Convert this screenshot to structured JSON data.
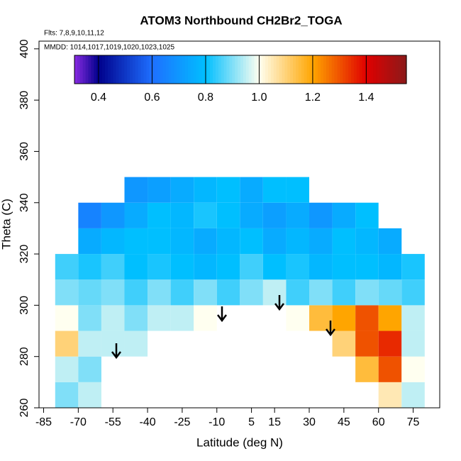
{
  "chart_data": {
    "type": "heatmap",
    "title": "ATOM3 Northbound CH2Br2_TOGA",
    "subtitle": "Flts: 7,8,9,10,11,12",
    "annotation": "MMDD: 1014,1017,1019,1020,1023,1025",
    "x_label": "Latitude (deg N)",
    "y_label": "Theta (C)",
    "x": [
      -75,
      -65,
      -55,
      -45,
      -35,
      -25,
      -15,
      -5,
      5,
      15,
      25,
      35,
      45,
      55,
      65,
      75
    ],
    "y": [
      265,
      275,
      285,
      295,
      305,
      315,
      325,
      335,
      345
    ],
    "z": [
      [
        0.9,
        0.95,
        null,
        null,
        null,
        null,
        null,
        null,
        null,
        null,
        null,
        null,
        null,
        null,
        1.05,
        0.95
      ],
      [
        0.95,
        0.9,
        null,
        null,
        null,
        null,
        null,
        null,
        null,
        null,
        null,
        null,
        null,
        1.15,
        1.3,
        1.0
      ],
      [
        1.1,
        0.95,
        0.95,
        0.95,
        null,
        null,
        null,
        null,
        null,
        null,
        null,
        null,
        1.1,
        1.3,
        1.35,
        0.95
      ],
      [
        1.0,
        0.9,
        0.95,
        0.9,
        0.95,
        0.95,
        1.0,
        null,
        null,
        null,
        1.0,
        1.15,
        1.2,
        1.3,
        1.2,
        0.95
      ],
      [
        0.9,
        0.88,
        0.9,
        0.85,
        0.9,
        0.85,
        0.9,
        0.85,
        0.9,
        0.95,
        0.85,
        0.9,
        0.85,
        0.9,
        0.88,
        0.85
      ],
      [
        0.85,
        0.82,
        0.85,
        0.8,
        0.82,
        0.8,
        0.78,
        0.8,
        0.85,
        0.8,
        0.82,
        0.78,
        0.8,
        0.8,
        0.78,
        0.82
      ],
      [
        null,
        0.75,
        0.78,
        0.8,
        0.8,
        0.78,
        0.75,
        0.78,
        0.8,
        0.75,
        0.78,
        0.75,
        0.8,
        0.78,
        0.75,
        null
      ],
      [
        null,
        0.65,
        0.7,
        0.75,
        0.8,
        0.78,
        0.82,
        0.8,
        0.75,
        0.72,
        0.75,
        0.7,
        0.75,
        0.8,
        null,
        null
      ],
      [
        null,
        null,
        null,
        0.7,
        0.72,
        0.75,
        0.78,
        0.8,
        0.75,
        0.8,
        0.8,
        null,
        null,
        null,
        null,
        null
      ]
    ],
    "xlim": [
      -87,
      86.5
    ],
    "xticks": [
      -85,
      -70,
      -55,
      -40,
      -25,
      -10,
      5,
      15,
      30,
      45,
      60,
      75
    ],
    "ylim": [
      260,
      403
    ],
    "yticks": [
      260,
      280,
      300,
      320,
      340,
      360,
      380,
      400
    ],
    "clim": [
      0.31,
      1.55
    ],
    "cticks": [
      0.4,
      0.6,
      0.8,
      {
        "value": 1,
        "label": "1.0"
      },
      1.2,
      1.4
    ],
    "colorscale": [
      [
        0.31,
        "#8a2be2"
      ],
      [
        0.4,
        "#00008b"
      ],
      [
        0.6,
        "#1e6fff"
      ],
      [
        0.8,
        "#00bfff"
      ],
      [
        1,
        "#fffff0"
      ],
      [
        1.2,
        "#ffa500"
      ],
      [
        1.4,
        "#e00000"
      ],
      [
        1.55,
        "#8b1a1a"
      ]
    ]
  }
}
